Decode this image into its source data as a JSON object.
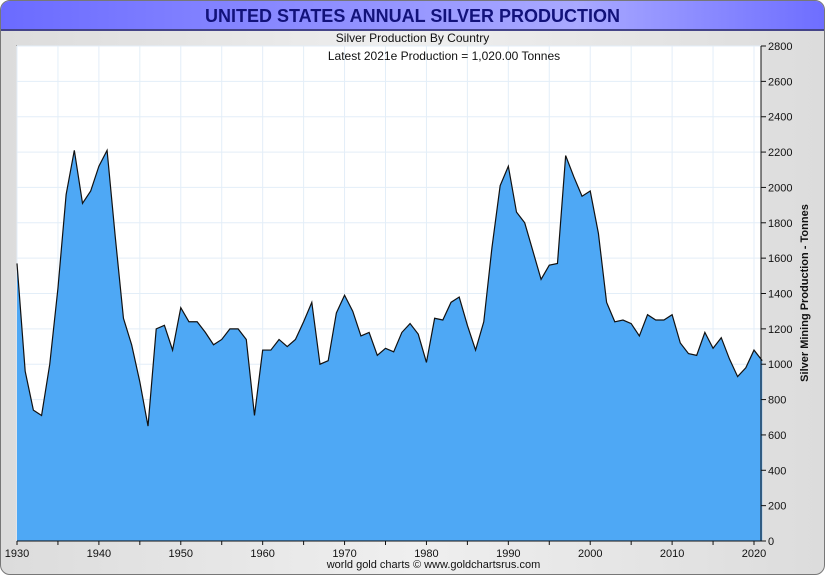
{
  "header": {
    "title": "UNITED STATES ANNUAL SILVER PRODUCTION",
    "subtitle": "Silver Production By Country"
  },
  "footer": "world gold charts © www.goldchartsrus.com",
  "colors": {
    "fill": "#4ea8f5",
    "line": "#111111",
    "title": "#12127a"
  },
  "chart_data": {
    "type": "area",
    "title": "UNITED STATES ANNUAL SILVER PRODUCTION",
    "subtitle": "Silver Production By Country",
    "annotation": "Latest 2021e Production = 1,020.00 Tonnes",
    "xlabel": "",
    "ylabel": "Silver Mining Production - Tonnes",
    "xlim": [
      1930,
      2021
    ],
    "ylim": [
      0,
      2800
    ],
    "xticks": [
      1930,
      1940,
      1950,
      1960,
      1970,
      1980,
      1990,
      2000,
      2010,
      2020
    ],
    "yticks": [
      0,
      200,
      400,
      600,
      800,
      1000,
      1200,
      1400,
      1600,
      1800,
      2000,
      2200,
      2400,
      2600,
      2800
    ],
    "grid": true,
    "x": [
      1930,
      1931,
      1932,
      1933,
      1934,
      1935,
      1936,
      1937,
      1938,
      1939,
      1940,
      1941,
      1942,
      1943,
      1944,
      1945,
      1946,
      1947,
      1948,
      1949,
      1950,
      1951,
      1952,
      1953,
      1954,
      1955,
      1956,
      1957,
      1958,
      1959,
      1960,
      1961,
      1962,
      1963,
      1964,
      1965,
      1966,
      1967,
      1968,
      1969,
      1970,
      1971,
      1972,
      1973,
      1974,
      1975,
      1976,
      1977,
      1978,
      1979,
      1980,
      1981,
      1982,
      1983,
      1984,
      1985,
      1986,
      1987,
      1988,
      1989,
      1990,
      1991,
      1992,
      1993,
      1994,
      1995,
      1996,
      1997,
      1998,
      1999,
      2000,
      2001,
      2002,
      2003,
      2004,
      2005,
      2006,
      2007,
      2008,
      2009,
      2010,
      2011,
      2012,
      2013,
      2014,
      2015,
      2016,
      2017,
      2018,
      2019,
      2020,
      2021
    ],
    "values": [
      1570,
      960,
      740,
      710,
      1000,
      1430,
      1960,
      2210,
      1910,
      1980,
      2120,
      2210,
      1720,
      1260,
      1110,
      900,
      650,
      1200,
      1220,
      1080,
      1320,
      1240,
      1240,
      1180,
      1110,
      1140,
      1200,
      1200,
      1140,
      710,
      1080,
      1080,
      1140,
      1100,
      1140,
      1240,
      1350,
      1000,
      1020,
      1290,
      1390,
      1300,
      1160,
      1180,
      1050,
      1090,
      1070,
      1180,
      1230,
      1170,
      1010,
      1260,
      1250,
      1350,
      1380,
      1220,
      1080,
      1240,
      1660,
      2010,
      2120,
      1860,
      1800,
      1640,
      1480,
      1560,
      1570,
      2180,
      2060,
      1950,
      1980,
      1740,
      1350,
      1240,
      1250,
      1230,
      1160,
      1280,
      1250,
      1250,
      1280,
      1120,
      1060,
      1050,
      1180,
      1090,
      1150,
      1030,
      930,
      980,
      1080,
      1020
    ]
  }
}
